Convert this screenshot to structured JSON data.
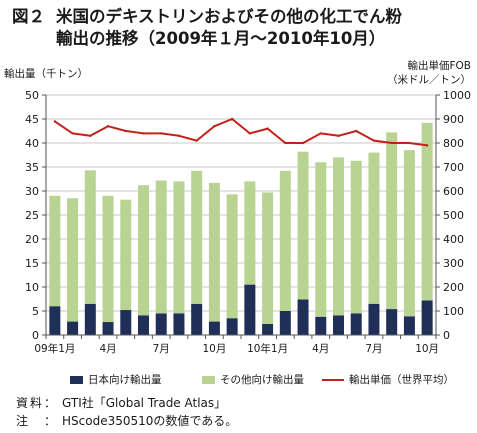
{
  "figure": {
    "number": "図２",
    "title_line1": "米国のデキストリンおよびその他の化工でん粉",
    "title_line2": "輸出の推移（2009年１月～2010年10月）"
  },
  "colors": {
    "japan_bar": "#1f2f57",
    "other_bar": "#b9d392",
    "price_line": "#c0231b",
    "grid": "#c8c8c8",
    "axis": "#555555"
  },
  "notes": [
    {
      "label": "資料：",
      "text": "GTI社「Global Trade Atlas」"
    },
    {
      "label": "注　：",
      "text": "HScode350510の数値である。"
    }
  ],
  "chart_data": {
    "type": "bar",
    "stacked": true,
    "left_axis_label": "輸出量（千トン）",
    "right_axis_label_line1": "輸出単価FOB",
    "right_axis_label_line2": "（米ドル／トン）",
    "ylim": [
      0,
      50
    ],
    "yticks": [
      0,
      5,
      10,
      15,
      20,
      25,
      30,
      35,
      40,
      45,
      50
    ],
    "y2lim": [
      0,
      1000
    ],
    "y2ticks": [
      0,
      100,
      200,
      300,
      400,
      500,
      600,
      700,
      800,
      900,
      1000
    ],
    "grid": true,
    "legend_position": "bottom",
    "categories": [
      "2009-01",
      "2009-02",
      "2009-03",
      "2009-04",
      "2009-05",
      "2009-06",
      "2009-07",
      "2009-08",
      "2009-09",
      "2009-10",
      "2009-11",
      "2009-12",
      "2010-01",
      "2010-02",
      "2010-03",
      "2010-04",
      "2010-05",
      "2010-06",
      "2010-07",
      "2010-08",
      "2010-09",
      "2010-10"
    ],
    "x_tick_labels": [
      {
        "index": 0,
        "label": "09年1月"
      },
      {
        "index": 3,
        "label": "4月"
      },
      {
        "index": 6,
        "label": "7月"
      },
      {
        "index": 9,
        "label": "10月"
      },
      {
        "index": 12,
        "label": "10年1月"
      },
      {
        "index": 15,
        "label": "4月"
      },
      {
        "index": 18,
        "label": "7月"
      },
      {
        "index": 21,
        "label": "10月"
      }
    ],
    "series": [
      {
        "name": "日本向け輸出量",
        "kind": "bar",
        "axis": "left",
        "values": [
          6.0,
          2.8,
          6.5,
          2.7,
          5.2,
          4.1,
          4.5,
          4.5,
          6.5,
          2.8,
          3.5,
          10.5,
          2.3,
          5.0,
          7.4,
          3.8,
          4.1,
          4.5,
          6.5,
          5.4,
          3.9,
          7.2
        ]
      },
      {
        "name": "その他向け輸出量",
        "kind": "bar",
        "axis": "left",
        "values": [
          23.0,
          25.7,
          27.8,
          26.3,
          23.0,
          27.1,
          27.7,
          27.5,
          27.7,
          28.9,
          25.8,
          21.5,
          27.4,
          29.2,
          30.8,
          32.2,
          32.9,
          31.8,
          31.5,
          36.8,
          34.6,
          37.0
        ]
      },
      {
        "name": "輸出単価（世界平均）",
        "kind": "line",
        "axis": "right",
        "values": [
          890,
          840,
          830,
          870,
          850,
          840,
          840,
          830,
          810,
          870,
          900,
          840,
          860,
          800,
          800,
          840,
          830,
          850,
          810,
          800,
          800,
          790
        ]
      }
    ]
  }
}
